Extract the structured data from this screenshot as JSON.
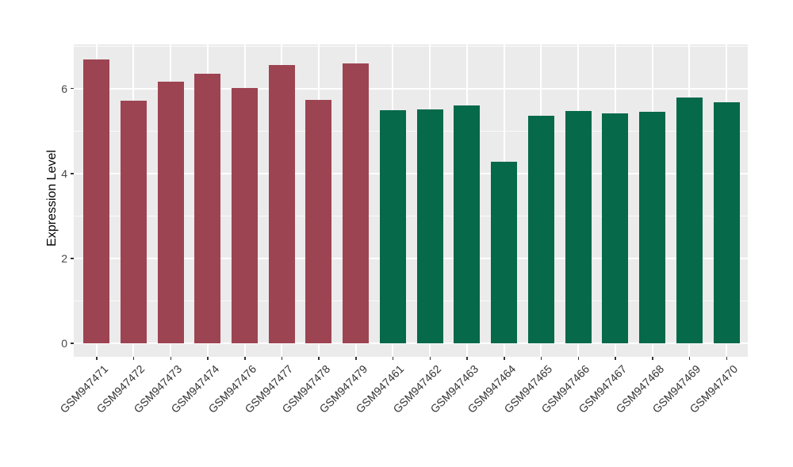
{
  "chart_data": {
    "type": "bar",
    "title": "",
    "xlabel": "",
    "ylabel": "Expression Level",
    "ylim": [
      0,
      7.03
    ],
    "yticks": [
      0,
      2,
      4,
      6
    ],
    "yticks_minor": [
      1,
      3,
      5,
      7
    ],
    "grid": "white major and minor gridlines on gray panel (ggplot style)",
    "legend_position": "none",
    "panel_bg": "#EBEBEB",
    "grid_color": "#FFFFFF",
    "axis_text_color": "#474747",
    "categories": [
      "GSM947471",
      "GSM947472",
      "GSM947473",
      "GSM947474",
      "GSM947476",
      "GSM947477",
      "GSM947478",
      "GSM947479",
      "GSM947461",
      "GSM947462",
      "GSM947463",
      "GSM947464",
      "GSM947465",
      "GSM947466",
      "GSM947467",
      "GSM947468",
      "GSM947469",
      "GSM947470"
    ],
    "values": [
      6.69,
      5.72,
      6.17,
      6.34,
      6.02,
      6.56,
      5.73,
      6.59,
      5.49,
      5.51,
      5.6,
      4.28,
      5.36,
      5.48,
      5.42,
      5.45,
      5.78,
      5.68
    ],
    "bar_groups": [
      "A",
      "A",
      "A",
      "A",
      "A",
      "A",
      "A",
      "A",
      "B",
      "B",
      "B",
      "B",
      "B",
      "B",
      "B",
      "B",
      "B",
      "B"
    ],
    "group_colors": {
      "A": "#9D4452",
      "B": "#05694A"
    }
  }
}
